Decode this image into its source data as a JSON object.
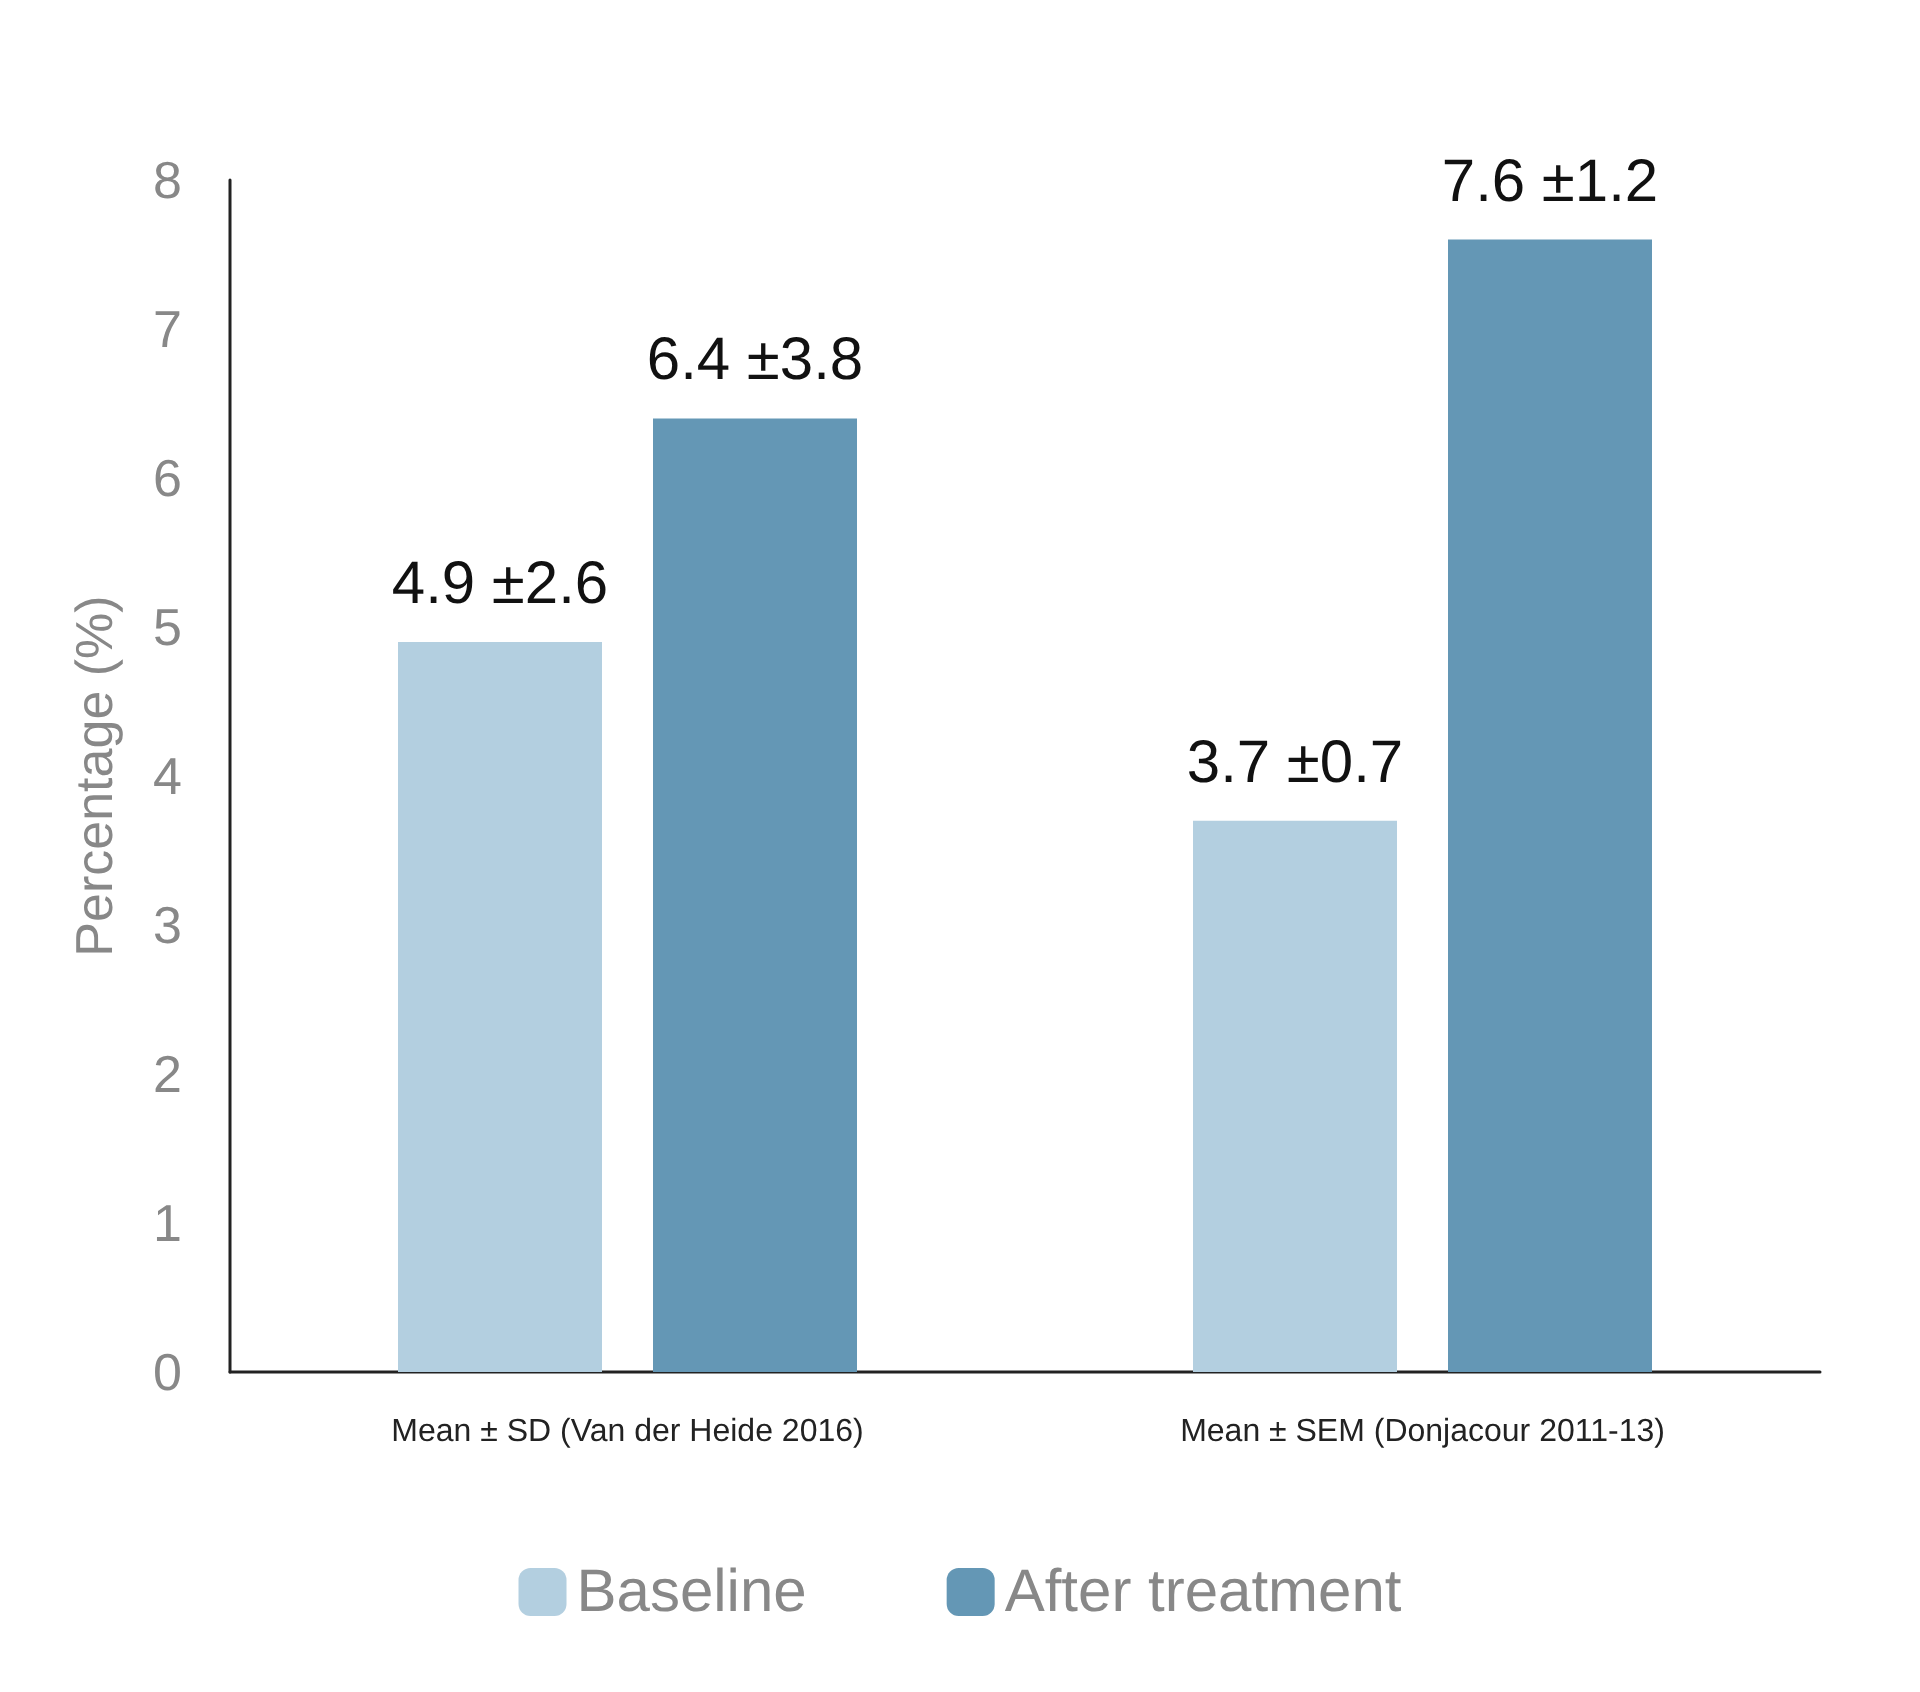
{
  "chart_data": {
    "type": "bar",
    "ylabel": "Percentage (%)",
    "categories": [
      "Mean ± SD (Van der Heide 2016)",
      "Mean ± SEM (Donjacour 2011-13)"
    ],
    "series": [
      {
        "name": "Baseline",
        "color": "#b3cfe0",
        "values": [
          4.9,
          3.7
        ],
        "value_labels": [
          "4.9 ±2.6",
          "3.7 ±0.7"
        ]
      },
      {
        "name": "After treatment",
        "color": "#6497b5",
        "values": [
          6.4,
          7.6
        ],
        "value_labels": [
          "6.4 ±3.8",
          "7.6 ±1.2"
        ]
      }
    ],
    "ylim": [
      0,
      8
    ],
    "yticks": [
      0,
      1,
      2,
      3,
      4,
      5,
      6,
      7,
      8
    ],
    "grid": false,
    "legend": "bottom"
  }
}
